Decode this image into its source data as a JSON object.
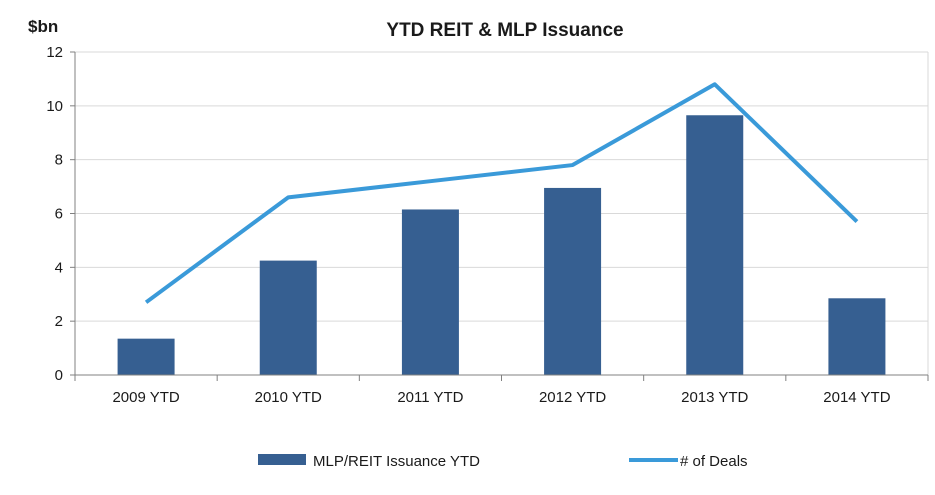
{
  "chart_data": {
    "type": "bar",
    "title": "YTD REIT & MLP Issuance",
    "ylabel": "$bn",
    "xlabel": "",
    "categories": [
      "2009 YTD",
      "2010 YTD",
      "2011 YTD",
      "2012 YTD",
      "2013 YTD",
      "2014 YTD"
    ],
    "ylim": [
      0,
      12
    ],
    "yticks": [
      0,
      2,
      4,
      6,
      8,
      10,
      12
    ],
    "grid": true,
    "legend_position": "bottom",
    "series": [
      {
        "name": "MLP/REIT Issuance YTD",
        "type": "bar",
        "color": "#365f91",
        "values": [
          1.35,
          4.25,
          6.15,
          6.95,
          9.65,
          2.85
        ]
      },
      {
        "name": "# of Deals",
        "type": "line",
        "axis": "secondary (unlabeled)",
        "color": "#3a9ad9",
        "values": [
          2.7,
          6.6,
          7.2,
          7.8,
          10.8,
          5.7
        ]
      }
    ]
  }
}
